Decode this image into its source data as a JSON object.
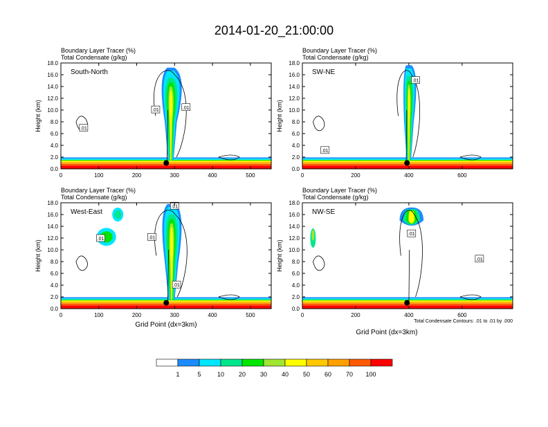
{
  "title": "2014-01-20_21:00:00",
  "colors": {
    "levels": [
      "#ffffff",
      "#1e8cff",
      "#00e6ff",
      "#00e68c",
      "#00e600",
      "#a0e632",
      "#ffff00",
      "#ffc800",
      "#ffa000",
      "#ff5a00",
      "#ff0000"
    ],
    "contour": "#000000"
  },
  "chart_data": [
    {
      "type": "heatmap",
      "panel_label": "South-North",
      "subtitle_left": "Boundary Layer Tracer   (%)",
      "subtitle_left2": "Total Condensate   (g/kg)",
      "ylabel": "Height (km)",
      "xlabel": "",
      "xlim": [
        0,
        555
      ],
      "ylim": [
        0,
        18
      ],
      "xticks": [
        0,
        100,
        200,
        300,
        400,
        500
      ],
      "xtick_labels": [
        "0",
        "100",
        "200",
        "300",
        "400",
        "500"
      ],
      "yticks": [
        0,
        2,
        4,
        6,
        8,
        10,
        12,
        14,
        16,
        18
      ],
      "ytick_labels": [
        "0.0",
        "2.0",
        "4.0",
        "6.0",
        "8.0",
        "10.0",
        "12.0",
        "14.0",
        "16.0",
        "18.0"
      ],
      "contour_labels": [
        {
          "x": 250,
          "y": 10.1,
          "text": ".01"
        },
        {
          "x": 330,
          "y": 10.5,
          "text": ".01"
        },
        {
          "x": 60,
          "y": 7.0,
          "text": ".01"
        }
      ],
      "marker": {
        "x": 278,
        "y": 1.0
      },
      "plume": {
        "center": 290,
        "top": 17.2,
        "core_top": 15.5,
        "width": 32,
        "anvil_left": 255,
        "anvil_right": 335
      }
    },
    {
      "type": "heatmap",
      "panel_label": "SW-NE",
      "subtitle_left": "Boundary Layer Tracer   (%)",
      "subtitle_left2": "Total Condensate   (g/kg)",
      "ylabel": "Height (km)",
      "xlabel": "",
      "xlim": [
        0,
        790
      ],
      "ylim": [
        0,
        18
      ],
      "xticks": [
        0,
        200,
        400,
        600
      ],
      "xtick_labels": [
        "0",
        "200",
        "400",
        "600"
      ],
      "yticks": [
        0,
        2,
        4,
        6,
        8,
        10,
        12,
        14,
        16,
        18
      ],
      "ytick_labels": [
        "0.0",
        "2.0",
        "4.0",
        "6.0",
        "8.0",
        "10.0",
        "12.0",
        "14.0",
        "16.0",
        "18.0"
      ],
      "contour_labels": [
        {
          "x": 425,
          "y": 15.1,
          "text": ".01"
        },
        {
          "x": 85,
          "y": 3.2,
          "text": ".01"
        }
      ],
      "marker": {
        "x": 393,
        "y": 1.0
      },
      "plume": {
        "center": 400,
        "top": 17.6,
        "core_top": 15.8,
        "width": 36,
        "anvil_left": 375,
        "anvil_right": 440
      }
    },
    {
      "type": "heatmap",
      "panel_label": "West-East",
      "subtitle_left": "Boundary Layer Tracer   (%)",
      "subtitle_left2": "Total Condensate   (g/kg)",
      "ylabel": "Height (km)",
      "xlabel": "Grid Point (dx=3km)",
      "xlim": [
        0,
        555
      ],
      "ylim": [
        0,
        18
      ],
      "xticks": [
        0,
        100,
        200,
        300,
        400,
        500
      ],
      "xtick_labels": [
        "0",
        "100",
        "200",
        "300",
        "400",
        "500"
      ],
      "yticks": [
        0,
        2,
        4,
        6,
        8,
        10,
        12,
        14,
        16,
        18
      ],
      "ytick_labels": [
        "0.0",
        "2.0",
        "4.0",
        "6.0",
        "8.0",
        "10.0",
        "12.0",
        "14.0",
        "16.0",
        "18.0"
      ],
      "contour_labels": [
        {
          "x": 105,
          "y": 12.0,
          "text": ".01"
        },
        {
          "x": 240,
          "y": 12.2,
          "text": ".01"
        },
        {
          "x": 305,
          "y": 4.1,
          "text": ".01"
        },
        {
          "x": 300,
          "y": 17.5,
          "text": ".01"
        }
      ],
      "marker": {
        "x": 278,
        "y": 1.0
      },
      "plume": {
        "center": 292,
        "top": 17.8,
        "core_top": 16.0,
        "width": 36,
        "anvil_left": 258,
        "anvil_right": 330
      }
    },
    {
      "type": "heatmap",
      "panel_label": "NW-SE",
      "subtitle_left": "Boundary Layer Tracer   (%)",
      "subtitle_left2": "Total Condensate   (g/kg)",
      "ylabel": "Height (km)",
      "xlabel": "Grid Point (dx=3km)",
      "xlim": [
        0,
        790
      ],
      "ylim": [
        0,
        18
      ],
      "xticks": [
        0,
        200,
        400,
        600
      ],
      "xtick_labels": [
        "0",
        "200",
        "400",
        "600"
      ],
      "yticks": [
        0,
        2,
        4,
        6,
        8,
        10,
        12,
        14,
        16,
        18
      ],
      "ytick_labels": [
        "0.0",
        "2.0",
        "4.0",
        "6.0",
        "8.0",
        "10.0",
        "12.0",
        "14.0",
        "16.0",
        "18.0"
      ],
      "contour_labels": [
        {
          "x": 410,
          "y": 12.8,
          "text": ".01"
        },
        {
          "x": 665,
          "y": 8.5,
          "text": ".01"
        }
      ],
      "marker": {
        "x": 393,
        "y": 1.0
      },
      "plume": {
        "center": 410,
        "top": 17.2,
        "core_top": 15.5,
        "width": 0,
        "anvil_left": 370,
        "anvil_right": 460
      },
      "footnote": "Total Condensate Contours: .01 to .01 by .000"
    }
  ],
  "colorbar": {
    "labels": [
      "1",
      "5",
      "10",
      "20",
      "30",
      "40",
      "50",
      "60",
      "70",
      "100"
    ]
  }
}
